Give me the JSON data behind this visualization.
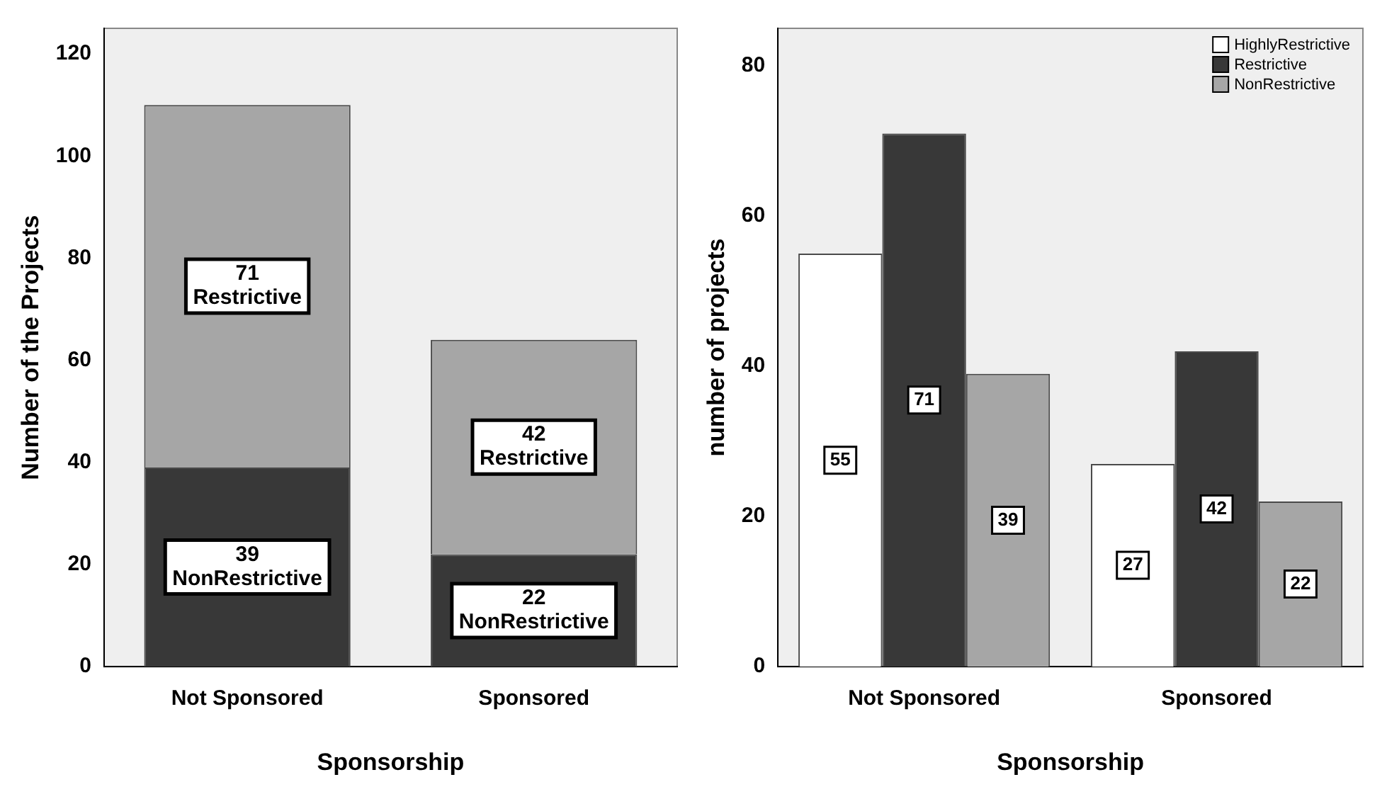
{
  "chart_data": [
    {
      "type": "bar",
      "stacked": true,
      "xlabel": "Sponsorship",
      "ylabel": "Number of the Projects",
      "categories": [
        "Not Sponsored",
        "Sponsored"
      ],
      "series": [
        {
          "name": "NonRestrictive",
          "color": "#383838",
          "values": [
            39,
            22
          ]
        },
        {
          "name": "Restrictive",
          "color": "#a6a6a6",
          "values": [
            71,
            42
          ]
        }
      ],
      "ylim": [
        0,
        125
      ],
      "yticks": [
        0,
        20,
        40,
        60,
        80,
        100,
        120
      ],
      "grid": false,
      "legend": false,
      "data_labels": true
    },
    {
      "type": "bar",
      "xlabel": "Sponsorship",
      "ylabel": "number of projects",
      "categories": [
        "Not Sponsored",
        "Sponsored"
      ],
      "series": [
        {
          "name": "HighlyRestrictive",
          "color": "#ffffff",
          "values": [
            55,
            27
          ]
        },
        {
          "name": "Restrictive",
          "color": "#383838",
          "values": [
            71,
            42
          ]
        },
        {
          "name": "NonRestrictive",
          "color": "#a6a6a6",
          "values": [
            39,
            22
          ]
        }
      ],
      "ylim": [
        0,
        85
      ],
      "yticks": [
        0,
        20,
        40,
        60,
        80
      ],
      "grid": false,
      "legend": "top right",
      "data_labels": true
    }
  ]
}
